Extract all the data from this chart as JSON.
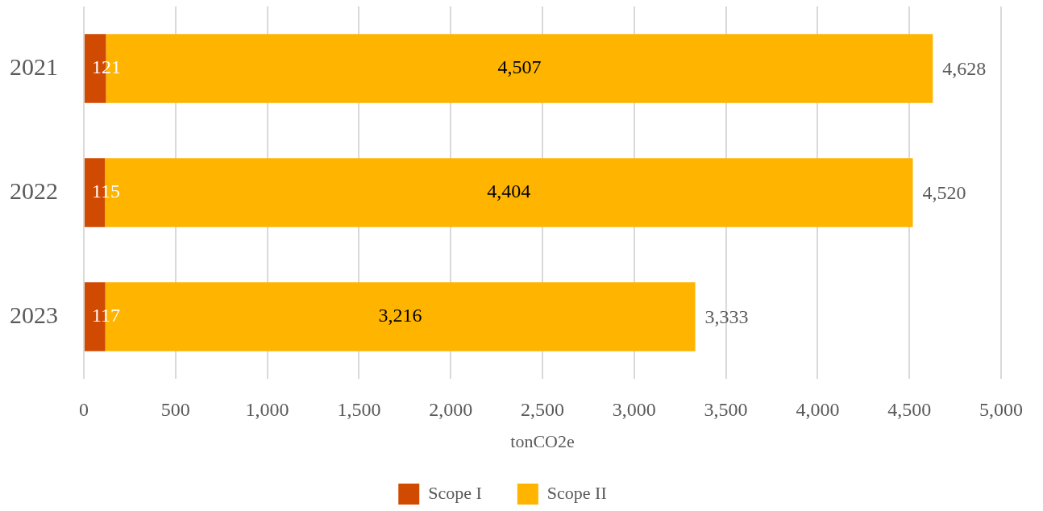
{
  "chart_data": {
    "type": "bar",
    "orientation": "horizontal",
    "stacked": true,
    "categories": [
      "2021",
      "2022",
      "2023"
    ],
    "series": [
      {
        "name": "Scope I",
        "color": "#d04a02",
        "values": [
          121,
          115,
          117
        ],
        "value_labels": [
          "121",
          "115",
          "117"
        ]
      },
      {
        "name": "Scope II",
        "color": "#ffb400",
        "values": [
          4507,
          4404,
          3216
        ],
        "value_labels": [
          "4,507",
          "4,404",
          "3,216"
        ]
      }
    ],
    "totals": [
      "4,628",
      "4,520",
      "3,333"
    ],
    "xlabel": "tonCO2e",
    "xlim": [
      0,
      5000
    ],
    "xticks": [
      0,
      500,
      {
        "value": 1000,
        "label": "1,000"
      },
      {
        "value": 1500,
        "label": "1,500"
      },
      {
        "value": 2000,
        "label": "2,000"
      },
      {
        "value": 2500,
        "label": "2,500"
      },
      {
        "value": 3000,
        "label": "3,000"
      },
      {
        "value": 3500,
        "label": "3,500"
      },
      {
        "value": 4000,
        "label": "4,000"
      },
      {
        "value": 4500,
        "label": "4,500"
      },
      {
        "value": 5000,
        "label": "5,000"
      }
    ],
    "grid": "x",
    "legend": "bottom"
  }
}
